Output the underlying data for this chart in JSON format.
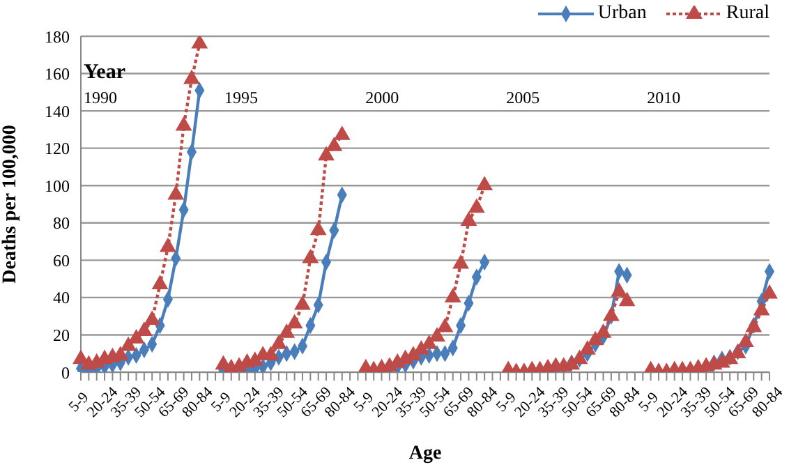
{
  "chart_data": {
    "type": "line",
    "xlabel": "Age",
    "ylabel": "Deaths per 100,000",
    "ylim": [
      0,
      180
    ],
    "yticks": [
      0,
      20,
      40,
      60,
      80,
      100,
      120,
      140,
      160,
      180
    ],
    "grid": "y",
    "legend": "top right",
    "annotations": [
      "Year",
      "1990",
      "1995",
      "2000",
      "2005",
      "2010"
    ],
    "categories": [
      "5-9",
      null,
      null,
      "20-24",
      null,
      null,
      "35-39",
      null,
      null,
      "50-54",
      null,
      null,
      "65-69",
      null,
      null,
      "80-84",
      null,
      null,
      "5-9",
      null,
      null,
      "20-24",
      null,
      null,
      "35-39",
      null,
      null,
      "50-54",
      null,
      null,
      "65-69",
      null,
      null,
      "80-84",
      null,
      null,
      "5-9",
      null,
      null,
      "20-24",
      null,
      null,
      "35-39",
      null,
      null,
      "50-54",
      null,
      null,
      "65-69",
      null,
      null,
      "80-84",
      null,
      null,
      "5-9",
      null,
      null,
      "20-24",
      null,
      null,
      "35-39",
      null,
      null,
      "50-54",
      null,
      null,
      "65-69",
      null,
      null,
      "80-84",
      null,
      null,
      "5-9",
      null,
      null,
      "20-24",
      null,
      null,
      "35-39",
      null,
      null,
      "50-54",
      null,
      null,
      "65-69",
      null,
      null,
      "80-84"
    ],
    "series": [
      {
        "name": "Urban",
        "color": "#4a7ebb",
        "marker": "diamond",
        "line_style": "solid",
        "values": [
          2,
          1,
          2,
          3,
          4,
          5,
          8,
          9,
          12,
          15,
          25,
          39,
          61,
          87,
          118,
          151,
          null,
          null,
          1,
          1,
          1,
          1,
          2,
          3,
          5,
          8,
          10,
          11,
          14,
          25,
          36,
          59,
          76,
          95,
          null,
          null,
          1,
          1,
          1,
          2,
          3,
          4,
          6,
          8,
          9,
          10,
          10,
          13,
          25,
          37,
          51,
          59,
          null,
          null,
          0,
          0,
          0,
          0,
          1,
          1,
          2,
          3,
          5,
          7,
          10,
          15,
          19,
          30,
          54,
          52,
          null,
          null,
          0,
          0,
          0,
          0,
          1,
          1,
          2,
          3,
          5,
          7,
          8,
          11,
          14,
          25,
          38,
          54
        ]
      },
      {
        "name": "Rural",
        "color": "#be4b48",
        "marker": "triangle",
        "line_style": "dotted",
        "values": [
          7,
          4,
          5,
          7,
          8,
          9,
          14,
          18,
          22,
          28,
          47,
          67,
          95,
          132,
          157,
          176,
          null,
          null,
          4,
          2,
          3,
          5,
          6,
          9,
          9,
          15,
          21,
          26,
          36,
          61,
          76,
          116,
          121,
          127,
          null,
          null,
          2,
          1,
          2,
          3,
          5,
          7,
          9,
          12,
          15,
          19,
          24,
          40,
          58,
          81,
          88,
          100,
          null,
          null,
          1,
          0,
          0,
          1,
          1,
          2,
          3,
          3,
          4,
          7,
          12,
          17,
          21,
          30,
          43,
          38,
          null,
          null,
          1,
          0,
          0,
          1,
          1,
          1,
          2,
          3,
          4,
          5,
          7,
          10,
          16,
          24,
          33,
          42
        ]
      }
    ]
  }
}
